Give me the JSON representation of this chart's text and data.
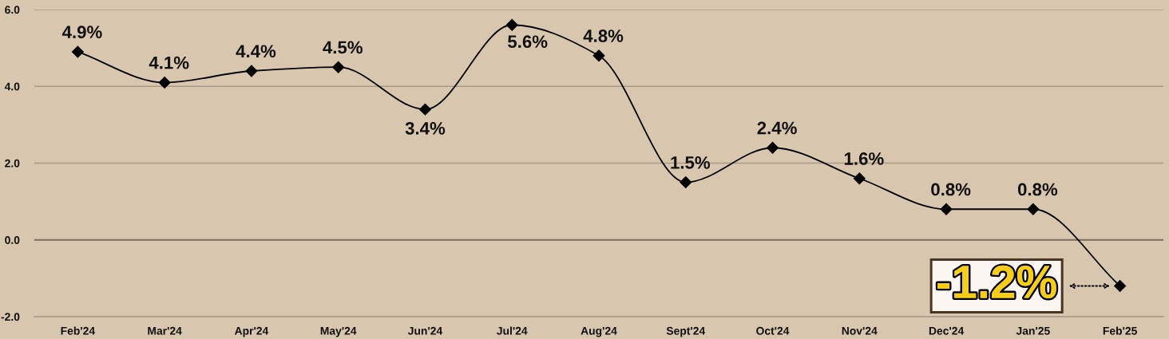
{
  "chart_data": {
    "type": "line",
    "categories": [
      "Feb'24",
      "Mar'24",
      "Apr'24",
      "May'24",
      "Jun'24",
      "Jul'24",
      "Aug'24",
      "Sept'24",
      "Oct'24",
      "Nov'24",
      "Dec'24",
      "Jan'25",
      "Feb'25"
    ],
    "series": [
      {
        "color": "#000000",
        "values": [
          4.9,
          4.1,
          4.4,
          4.5,
          3.4,
          5.6,
          4.8,
          1.5,
          2.4,
          1.6,
          0.8,
          0.8,
          -1.2
        ],
        "value_labels": [
          "4.9%",
          "4.1%",
          "4.4%",
          "4.5%",
          "3.4%",
          "5.6%",
          "4.8%",
          "1.5%",
          "2.4%",
          "1.6%",
          "0.8%",
          "0.8%",
          "-1.2%"
        ]
      }
    ],
    "ylim": [
      -2,
      6
    ],
    "yticks": [
      {
        "value": -2,
        "label": "-2.0"
      },
      {
        "value": 0,
        "label": "0.0"
      },
      {
        "value": 2,
        "label": "2.0"
      },
      {
        "value": 4,
        "label": "4.0"
      },
      {
        "value": 6,
        "label": "6.0"
      }
    ],
    "ref_lines": [
      {
        "axis": "y",
        "value": 0,
        "color": "#7b7061"
      }
    ],
    "grid": "y",
    "marker": "diamond",
    "line_style": "solid"
  }
}
